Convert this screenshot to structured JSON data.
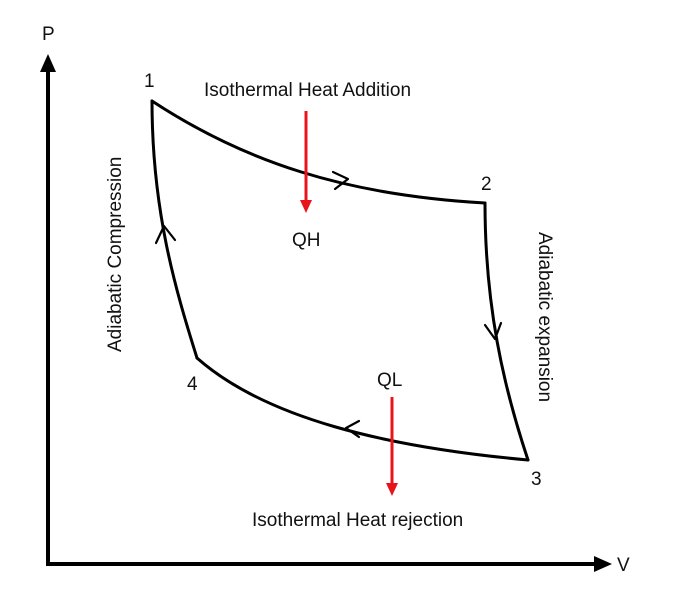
{
  "axes": {
    "y_label": "P",
    "x_label": "V"
  },
  "points": {
    "p1": "1",
    "p2": "2",
    "p3": "3",
    "p4": "4"
  },
  "processes": {
    "top": "Isothermal Heat Addition",
    "right": "Adiabatic expansion",
    "bottom": "Isothermal Heat rejection",
    "left": "Adiabatic Compression"
  },
  "heat": {
    "in_label": "QH",
    "out_label": "QL",
    "arrow_color": "#e8141b"
  },
  "colors": {
    "line": "#000000",
    "text": "#111111"
  }
}
